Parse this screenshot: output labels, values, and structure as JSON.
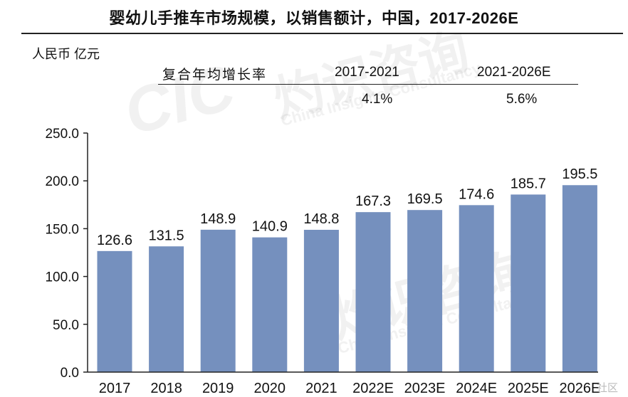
{
  "title": "婴幼儿手推车市场规模，以销售额计，中国，2017-2026E",
  "unit_label": "人民币 亿元",
  "cagr": {
    "label": "复合年均增长率",
    "periods": [
      "2017-2021",
      "2021-2026E"
    ],
    "values": [
      "4.1%",
      "5.6%"
    ]
  },
  "watermark": {
    "cn": "灼识咨询",
    "logo": "CIC",
    "en": "China Insights Consultancy",
    "corner": "社区"
  },
  "colors": {
    "bar": "#7590BE",
    "axis": "#222222"
  },
  "chart_data": {
    "type": "bar",
    "categories": [
      "2017",
      "2018",
      "2019",
      "2020",
      "2021",
      "2022E",
      "2023E",
      "2024E",
      "2025E",
      "2026E"
    ],
    "values": [
      126.6,
      131.5,
      148.9,
      140.9,
      148.8,
      167.3,
      169.5,
      174.6,
      185.7,
      195.5
    ],
    "value_labels": [
      "126.6",
      "131.5",
      "148.9",
      "140.9",
      "148.8",
      "167.3",
      "169.5",
      "174.6",
      "185.7",
      "195.5"
    ],
    "ylim": [
      0,
      250
    ],
    "yticks": [
      "0.0",
      "50.0",
      "100.0",
      "150.0",
      "200.0",
      "250.0"
    ],
    "ytick_values": [
      0,
      50,
      100,
      150,
      200,
      250
    ],
    "grid": false,
    "legend": "none"
  }
}
